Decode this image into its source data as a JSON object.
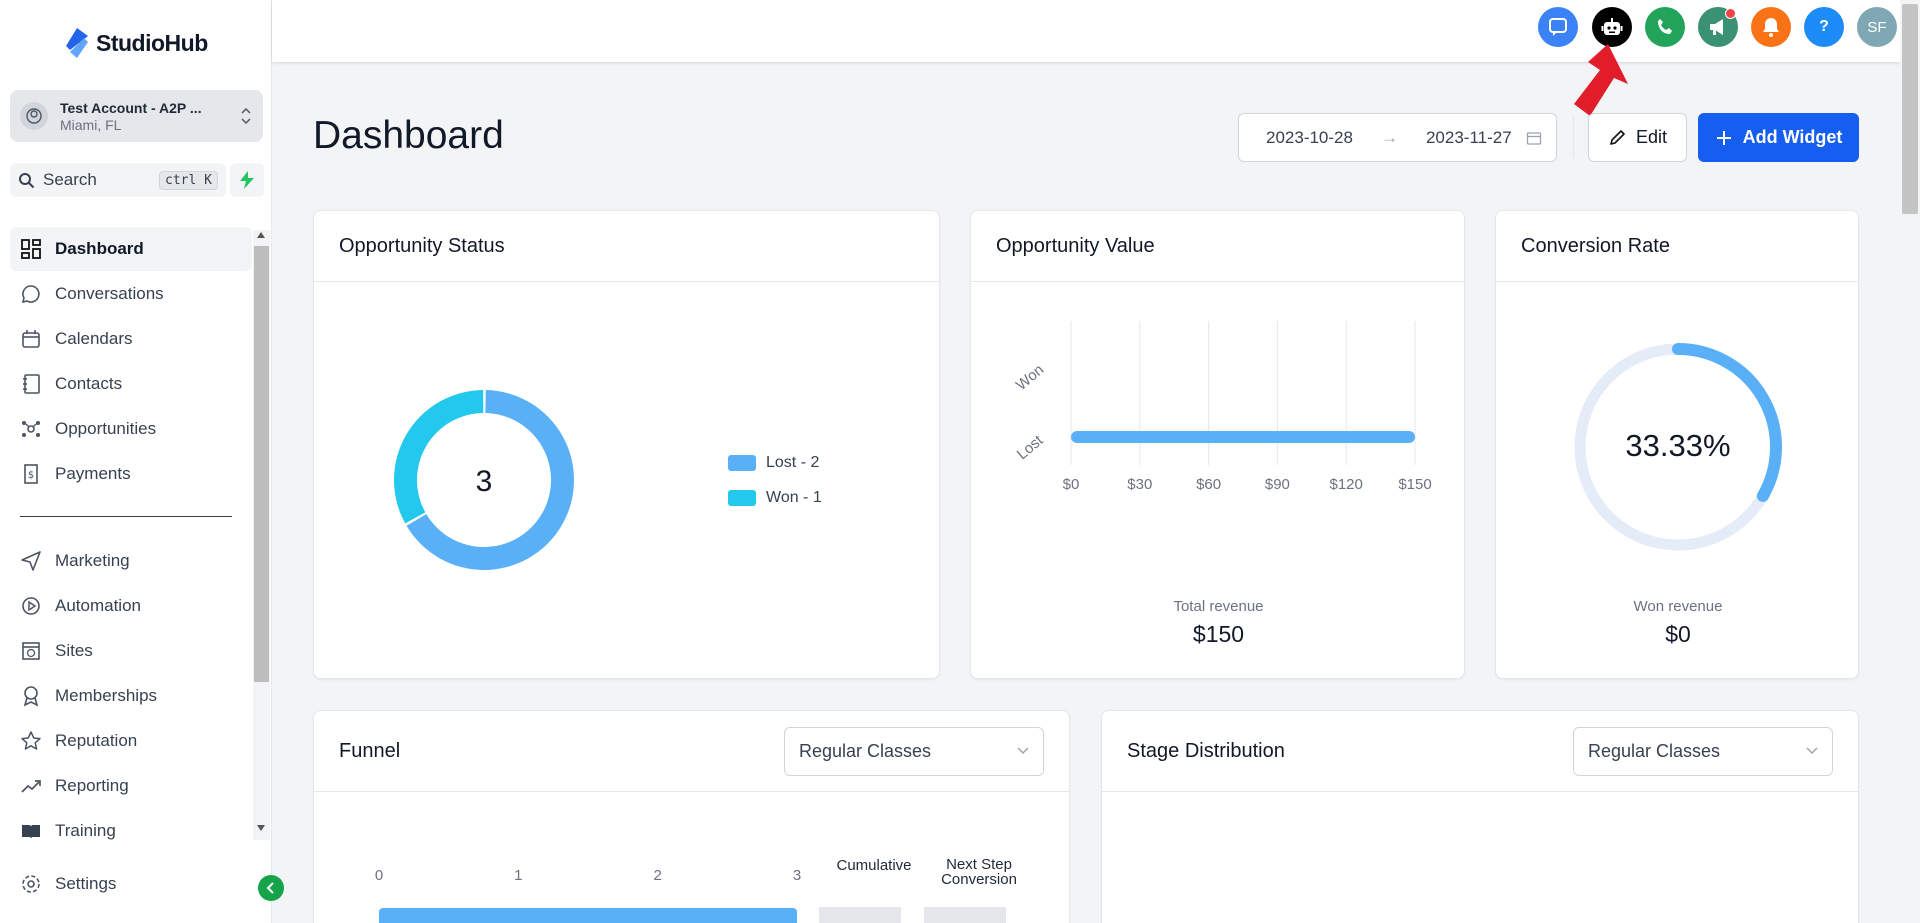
{
  "app": {
    "name": "StudioHub"
  },
  "account": {
    "name": "Test Account - A2P ...",
    "location": "Miami, FL"
  },
  "search": {
    "label": "Search",
    "shortcut": "ctrl K"
  },
  "sidebar": {
    "items": [
      {
        "label": "Dashboard",
        "icon": "grid-icon",
        "active": true
      },
      {
        "label": "Conversations",
        "icon": "chat-bubble-icon"
      },
      {
        "label": "Calendars",
        "icon": "calendar-icon"
      },
      {
        "label": "Contacts",
        "icon": "contacts-book-icon"
      },
      {
        "label": "Opportunities",
        "icon": "opportunities-icon"
      },
      {
        "label": "Payments",
        "icon": "receipt-dollar-icon"
      },
      {
        "label": "Marketing",
        "icon": "paper-plane-icon"
      },
      {
        "label": "Automation",
        "icon": "play-circle-icon"
      },
      {
        "label": "Sites",
        "icon": "globe-window-icon"
      },
      {
        "label": "Memberships",
        "icon": "award-icon"
      },
      {
        "label": "Reputation",
        "icon": "star-icon"
      },
      {
        "label": "Reporting",
        "icon": "trend-up-icon"
      },
      {
        "label": "Training",
        "icon": "book-open-icon"
      }
    ],
    "settings": "Settings"
  },
  "header": {
    "icons": [
      {
        "name": "chat-support-icon",
        "color": "#3b82f6"
      },
      {
        "name": "robot-icon",
        "color": "#000000"
      },
      {
        "name": "phone-icon",
        "color": "#22a55b"
      },
      {
        "name": "megaphone-icon",
        "color": "#3b9174"
      },
      {
        "name": "bell-icon",
        "color": "#f97316"
      },
      {
        "name": "help-icon",
        "color": "#1d8cf8",
        "glyph": "?"
      },
      {
        "name": "user-avatar",
        "color": "#7fa8b4",
        "glyph": "SF"
      }
    ]
  },
  "dashboard": {
    "title": "Dashboard",
    "date_start": "2023-10-28",
    "date_end": "2023-11-27",
    "edit_label": "Edit",
    "add_widget_label": "Add Widget"
  },
  "opportunity_status": {
    "title": "Opportunity Status",
    "total": "3",
    "legend": [
      {
        "label": "Lost - 2",
        "color": "#5ab0f7"
      },
      {
        "label": "Won - 1",
        "color": "#22c9ec"
      }
    ]
  },
  "opportunity_value": {
    "title": "Opportunity Value",
    "footer_label": "Total revenue",
    "footer_value": "$150"
  },
  "conversion_rate": {
    "title": "Conversion Rate",
    "value_text": "33.33%",
    "fraction": 0.3333,
    "footer_label": "Won revenue",
    "footer_value": "$0"
  },
  "funnel": {
    "title": "Funnel",
    "select": "Regular Classes",
    "axis_ticks": [
      "0",
      "1",
      "2",
      "3"
    ],
    "col_cumulative": "Cumulative",
    "col_next_step": "Next Step Conversion"
  },
  "stage_distribution": {
    "title": "Stage Distribution",
    "select": "Regular Classes"
  },
  "chart_data": [
    {
      "type": "pie",
      "categories": [
        "Lost",
        "Won"
      ],
      "values": [
        2,
        1
      ],
      "colors": [
        "#5ab0f7",
        "#22c9ec"
      ]
    },
    {
      "type": "bar",
      "orientation": "horizontal",
      "categories": [
        "Won",
        "Lost"
      ],
      "values": [
        0,
        150
      ],
      "xticks": [
        "$0",
        "$30",
        "$60",
        "$90",
        "$120",
        "$150"
      ],
      "xlim": [
        0,
        150
      ],
      "grid": true
    },
    {
      "type": "bar",
      "orientation": "horizontal",
      "categories": [
        "Regular Classes"
      ],
      "values": [
        3
      ],
      "xlim": [
        0,
        3
      ]
    }
  ]
}
